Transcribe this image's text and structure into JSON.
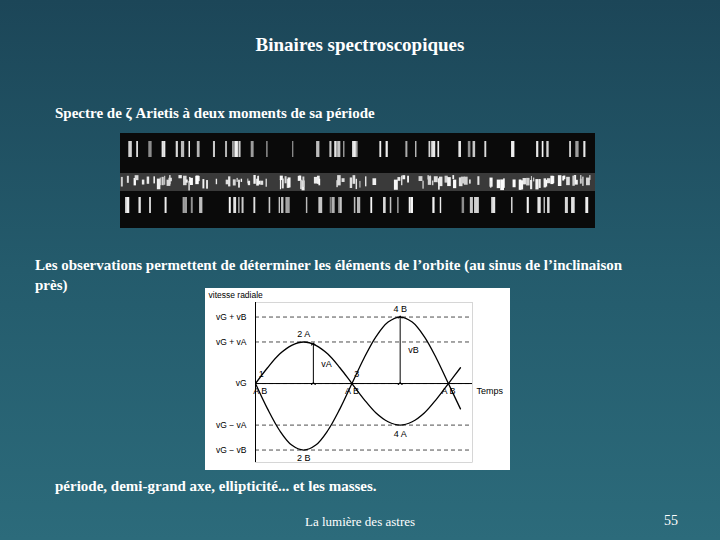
{
  "slide": {
    "title": "Binaires spectroscopiques",
    "spectrum_caption": "Spectre de ζ Arietis à deux moments de sa période",
    "observation_text": "Les observations permettent de déterminer les éléments de l’orbite (au sinus  de l’inclinaison près)",
    "result_text": "période, demi-grand axe, ellipticité... et les masses.",
    "footer": "La lumière des astres",
    "page_number": "55"
  },
  "chart_data": {
    "type": "line",
    "y_label": "vitesse radiale",
    "x_label": "Temps",
    "x": [
      0,
      0.25,
      0.5,
      0.75,
      1,
      1.25,
      1.5,
      1.75,
      2,
      2.25,
      2.5,
      2.75,
      3,
      3.25,
      3.5,
      3.75,
      4,
      4.25
    ],
    "series": [
      {
        "name": "A",
        "color": "#000000",
        "line_style": "solid",
        "values": [
          0,
          0.38,
          0.71,
          0.92,
          1,
          0.92,
          0.71,
          0.38,
          0,
          -0.38,
          -0.71,
          -0.92,
          -1,
          -0.92,
          -0.71,
          -0.38,
          0,
          0.38
        ]
      },
      {
        "name": "B",
        "color": "#000000",
        "line_style": "solid",
        "values": [
          0,
          -0.61,
          -1.13,
          -1.48,
          -1.6,
          -1.48,
          -1.13,
          -0.61,
          0,
          0.61,
          1.13,
          1.48,
          1.6,
          1.48,
          1.13,
          0.61,
          0,
          -0.61
        ]
      }
    ],
    "xlim": [
      0,
      4.5
    ],
    "ylim": [
      -1.9,
      1.95
    ],
    "yticks": [
      {
        "value": 1.6,
        "label": "vG + vB"
      },
      {
        "value": 1,
        "label": "vG + vA"
      },
      {
        "value": 0,
        "label": "vG"
      },
      {
        "value": -1,
        "label": "vG − vA"
      },
      {
        "value": -1.6,
        "label": "vG − vB"
      }
    ],
    "tick_labels": "y",
    "grid": true,
    "arrows": [
      {
        "x": 1.2,
        "from": 0,
        "to": 0.95,
        "label": "vA"
      },
      {
        "x": 3,
        "from": 0,
        "to": 1.6,
        "label": "vB"
      }
    ],
    "annotations": [
      {
        "x": 0.12,
        "y": 0.22,
        "text": "1"
      },
      {
        "x": 1,
        "y": 1.18,
        "text": "2 A"
      },
      {
        "x": 2.1,
        "y": 0.22,
        "text": "3"
      },
      {
        "x": 3,
        "y": 1.8,
        "text": "4 B"
      },
      {
        "x": 3,
        "y": -1.22,
        "text": "4 A"
      },
      {
        "x": 1,
        "y": -1.8,
        "text": "2 B"
      },
      {
        "x": 0.1,
        "y": -0.18,
        "text": "A B"
      },
      {
        "x": 2,
        "y": -0.18,
        "text": "A B"
      },
      {
        "x": 4,
        "y": -0.18,
        "text": "A B"
      }
    ]
  }
}
